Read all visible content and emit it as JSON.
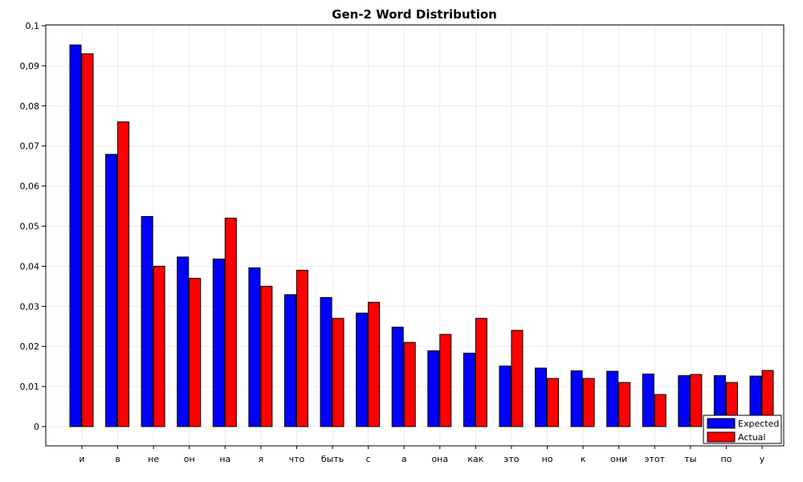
{
  "chart_data": {
    "type": "bar",
    "title": "Gen-2 Word Distribution",
    "xlabel": "",
    "ylabel": "",
    "categories": [
      "и",
      "в",
      "не",
      "он",
      "на",
      "я",
      "что",
      "быть",
      "с",
      "а",
      "она",
      "как",
      "это",
      "но",
      "к",
      "они",
      "этот",
      "ты",
      "по",
      "у"
    ],
    "series": [
      {
        "name": "Expected",
        "color": "#0000ff",
        "values": [
          0.0952,
          0.0679,
          0.0524,
          0.0423,
          0.0418,
          0.0396,
          0.0329,
          0.0322,
          0.0283,
          0.0248,
          0.0189,
          0.0183,
          0.0151,
          0.0146,
          0.0139,
          0.0138,
          0.0131,
          0.0127,
          0.0127,
          0.0126
        ]
      },
      {
        "name": "Actual",
        "color": "#ff0000",
        "values": [
          0.093,
          0.076,
          0.04,
          0.037,
          0.052,
          0.035,
          0.039,
          0.027,
          0.031,
          0.021,
          0.023,
          0.027,
          0.024,
          0.012,
          0.012,
          0.011,
          0.008,
          0.013,
          0.011,
          0.014
        ]
      }
    ],
    "ylim": [
      0,
      0.1
    ],
    "yticks": [
      "0",
      "0,01",
      "0,02",
      "0,03",
      "0,04",
      "0,05",
      "0,06",
      "0,07",
      "0,08",
      "0,09",
      "0,1"
    ],
    "grid": true,
    "legend_position": "bottom-right"
  }
}
